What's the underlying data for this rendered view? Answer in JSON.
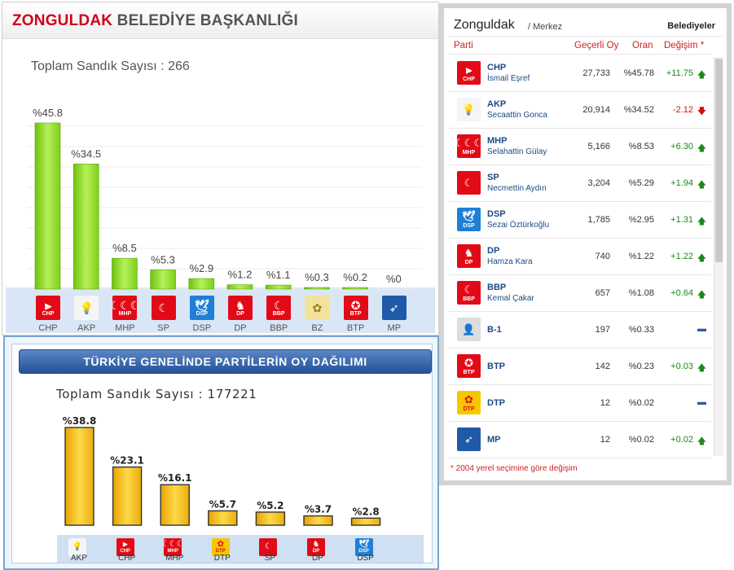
{
  "colors": {
    "chp": "#e30a17",
    "akp": "#f3f3f3",
    "mhp": "#e30a17",
    "sp": "#e30a17",
    "dsp": "#1f7fd6",
    "dp": "#e30a17",
    "bbp": "#e30a17",
    "bz": "#f5e6a0",
    "btp": "#e30a17",
    "mp": "#1f5aa8",
    "dtp": "#e30a17",
    "b1": "#d8d8d8",
    "up": "#1a8a1a",
    "down": "#cc1111",
    "neutral": "#2d5aa0"
  },
  "local": {
    "title_red": "ZONGULDAK",
    "title_rest": " BELEDİYE BAŞKANLIĞI",
    "total_label": "Toplam Sandık Sayısı : 266"
  },
  "national": {
    "title": "TÜRKİYE GENELİNDE PARTİLERİN OY DAĞILIMI",
    "total_label": "Toplam Sandık Sayısı : 177221"
  },
  "chart_data": [
    {
      "type": "bar",
      "title": "ZONGULDAK BELEDİYE BAŞKANLIĞI",
      "categories": [
        "CHP",
        "AKP",
        "MHP",
        "SP",
        "DSP",
        "DP",
        "BBP",
        "BZ",
        "BTP",
        "MP"
      ],
      "values": [
        45.8,
        34.5,
        8.5,
        5.3,
        2.9,
        1.2,
        1.1,
        0.3,
        0.2,
        0
      ],
      "value_labels": [
        "%45.8",
        "%34.5",
        "%8.5",
        "%5.3",
        "%2.9",
        "%1.2",
        "%1.1",
        "%0.3",
        "%0.2",
        "%0"
      ],
      "ylim": [
        0,
        50
      ],
      "grid": true,
      "bar_color": "#8fd62a"
    },
    {
      "type": "bar",
      "title": "TÜRKİYE GENELİNDE PARTİLERİN OY DAĞILIMI",
      "categories": [
        "AKP",
        "CHP",
        "MHP",
        "DTP",
        "SP",
        "DP",
        "DSP"
      ],
      "values": [
        38.8,
        23.1,
        16.1,
        5.7,
        5.2,
        3.7,
        2.8
      ],
      "value_labels": [
        "%38.8",
        "%23.1",
        "%16.1",
        "%5.7",
        "%5.2",
        "%3.7",
        "%2.8"
      ],
      "ylim": [
        0,
        40
      ],
      "grid": false,
      "bar_color": "#f4c21a"
    }
  ],
  "results": {
    "city": "Zonguldak",
    "district": "/ Merkez",
    "type_label": "Belediyeler",
    "headers": {
      "party": "Parti",
      "votes": "Geçerli Oy",
      "ratio": "Oran",
      "change": "Değişim *"
    },
    "footnote": "* 2004 yerel seçimine göre değişim",
    "rows": [
      {
        "party": "CHP",
        "candidate": "İsmail Eşref",
        "votes": "27,733",
        "ratio": "%45.78",
        "change": "+11.75",
        "dir": "up",
        "logo": "chp"
      },
      {
        "party": "AKP",
        "candidate": "Secaattin Gonca",
        "votes": "20,914",
        "ratio": "%34.52",
        "change": "-2.12",
        "dir": "down",
        "logo": "akp"
      },
      {
        "party": "MHP",
        "candidate": "Selahattin Gülay",
        "votes": "5,166",
        "ratio": "%8.53",
        "change": "+6.30",
        "dir": "up",
        "logo": "mhp"
      },
      {
        "party": "SP",
        "candidate": "Necmettin Aydın",
        "votes": "3,204",
        "ratio": "%5.29",
        "change": "+1.94",
        "dir": "up",
        "logo": "sp"
      },
      {
        "party": "DSP",
        "candidate": "Sezai Öztürkoğlu",
        "votes": "1,785",
        "ratio": "%2.95",
        "change": "+1.31",
        "dir": "up",
        "logo": "dsp"
      },
      {
        "party": "DP",
        "candidate": "Hamza Kara",
        "votes": "740",
        "ratio": "%1.22",
        "change": "+1.22",
        "dir": "up",
        "logo": "dp"
      },
      {
        "party": "BBP",
        "candidate": "Kemal Çakar",
        "votes": "657",
        "ratio": "%1.08",
        "change": "+0.64",
        "dir": "up",
        "logo": "bbp"
      },
      {
        "party": "B-1",
        "candidate": "",
        "votes": "197",
        "ratio": "%0.33",
        "change": "",
        "dir": "none",
        "logo": "b1"
      },
      {
        "party": "BTP",
        "candidate": "",
        "votes": "142",
        "ratio": "%0.23",
        "change": "+0.03",
        "dir": "up",
        "logo": "btp"
      },
      {
        "party": "DTP",
        "candidate": "",
        "votes": "12",
        "ratio": "%0.02",
        "change": "",
        "dir": "none",
        "logo": "dtp"
      },
      {
        "party": "MP",
        "candidate": "",
        "votes": "12",
        "ratio": "%0.02",
        "change": "+0.02",
        "dir": "up",
        "logo": "mp"
      }
    ]
  },
  "logos": {
    "chp": {
      "name": "chp-six-arrows-icon",
      "text": "CHP",
      "glyph": "⫸",
      "bg": "#e30a17",
      "fg": "#ffffff"
    },
    "akp": {
      "name": "akp-lightbulb-icon",
      "text": "",
      "glyph": "💡",
      "bg": "#f5f5f5",
      "fg": "#e0a000"
    },
    "mhp": {
      "name": "mhp-crescents-icon",
      "text": "MHP",
      "glyph": "☾☾☾",
      "bg": "#e30a17",
      "fg": "#ffffff"
    },
    "sp": {
      "name": "sp-crescent-icon",
      "text": "",
      "glyph": "☾",
      "bg": "#e30a17",
      "fg": "#ffffff"
    },
    "dsp": {
      "name": "dsp-dove-icon",
      "text": "DSP",
      "glyph": "🕊",
      "bg": "#1f7fd6",
      "fg": "#ffffff"
    },
    "dp": {
      "name": "dp-horse-icon",
      "text": "DP",
      "glyph": "♞",
      "bg": "#e30a17",
      "fg": "#ffffff"
    },
    "bbp": {
      "name": "bbp-crescent-icon",
      "text": "BBP",
      "glyph": "☾",
      "bg": "#e30a17",
      "fg": "#ffffff"
    },
    "bz": {
      "name": "bz-emblem-icon",
      "text": "",
      "glyph": "✿",
      "bg": "#f3e29a",
      "fg": "#9c7c1a"
    },
    "btp": {
      "name": "btp-stars-icon",
      "text": "BTP",
      "glyph": "✪",
      "bg": "#e30a17",
      "fg": "#ffffff"
    },
    "mp": {
      "name": "mp-emblem-icon",
      "text": "",
      "glyph": "➶",
      "bg": "#1f5aa8",
      "fg": "#ffffff"
    },
    "dtp": {
      "name": "dtp-flower-icon",
      "text": "DTP",
      "glyph": "✿",
      "bg": "#f6c700",
      "fg": "#e30a17"
    },
    "b1": {
      "name": "independent-person-icon",
      "text": "",
      "glyph": "👤",
      "bg": "#dddddd",
      "fg": "#9a9a9a"
    }
  }
}
